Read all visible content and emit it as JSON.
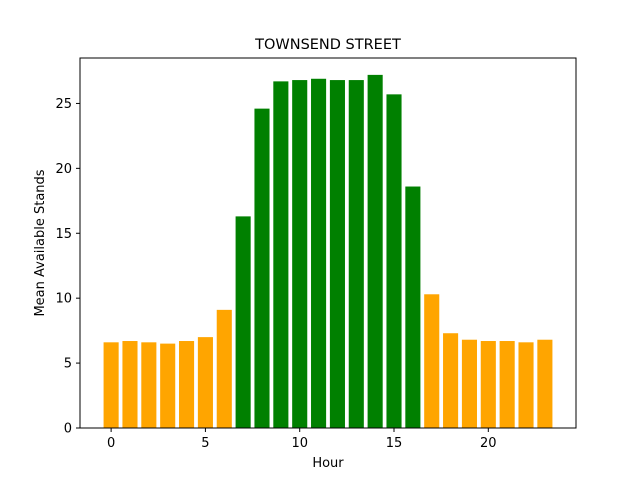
{
  "chart_data": {
    "type": "bar",
    "title": "TOWNSEND STREET",
    "xlabel": "Hour",
    "ylabel": "Mean Available Stands",
    "x": [
      0,
      1,
      2,
      3,
      4,
      5,
      6,
      7,
      8,
      9,
      10,
      11,
      12,
      13,
      14,
      15,
      16,
      17,
      18,
      19,
      20,
      21,
      22,
      23
    ],
    "values": [
      6.6,
      6.7,
      6.6,
      6.5,
      6.7,
      7.0,
      9.1,
      16.3,
      24.6,
      26.7,
      26.8,
      26.9,
      26.8,
      26.8,
      27.2,
      25.7,
      18.6,
      10.3,
      7.3,
      6.8,
      6.7,
      6.7,
      6.6,
      6.8
    ],
    "colors": [
      "#ffa500",
      "#ffa500",
      "#ffa500",
      "#ffa500",
      "#ffa500",
      "#ffa500",
      "#ffa500",
      "#008000",
      "#008000",
      "#008000",
      "#008000",
      "#008000",
      "#008000",
      "#008000",
      "#008000",
      "#008000",
      "#008000",
      "#ffa500",
      "#ffa500",
      "#ffa500",
      "#ffa500",
      "#ffa500",
      "#ffa500",
      "#ffa500"
    ],
    "xticks": [
      0,
      5,
      10,
      15,
      20
    ],
    "yticks": [
      0,
      5,
      10,
      15,
      20,
      25
    ],
    "xlim": [
      -1.65,
      24.65
    ],
    "ylim": [
      0,
      28.5
    ],
    "grid": false,
    "legend": "none"
  }
}
